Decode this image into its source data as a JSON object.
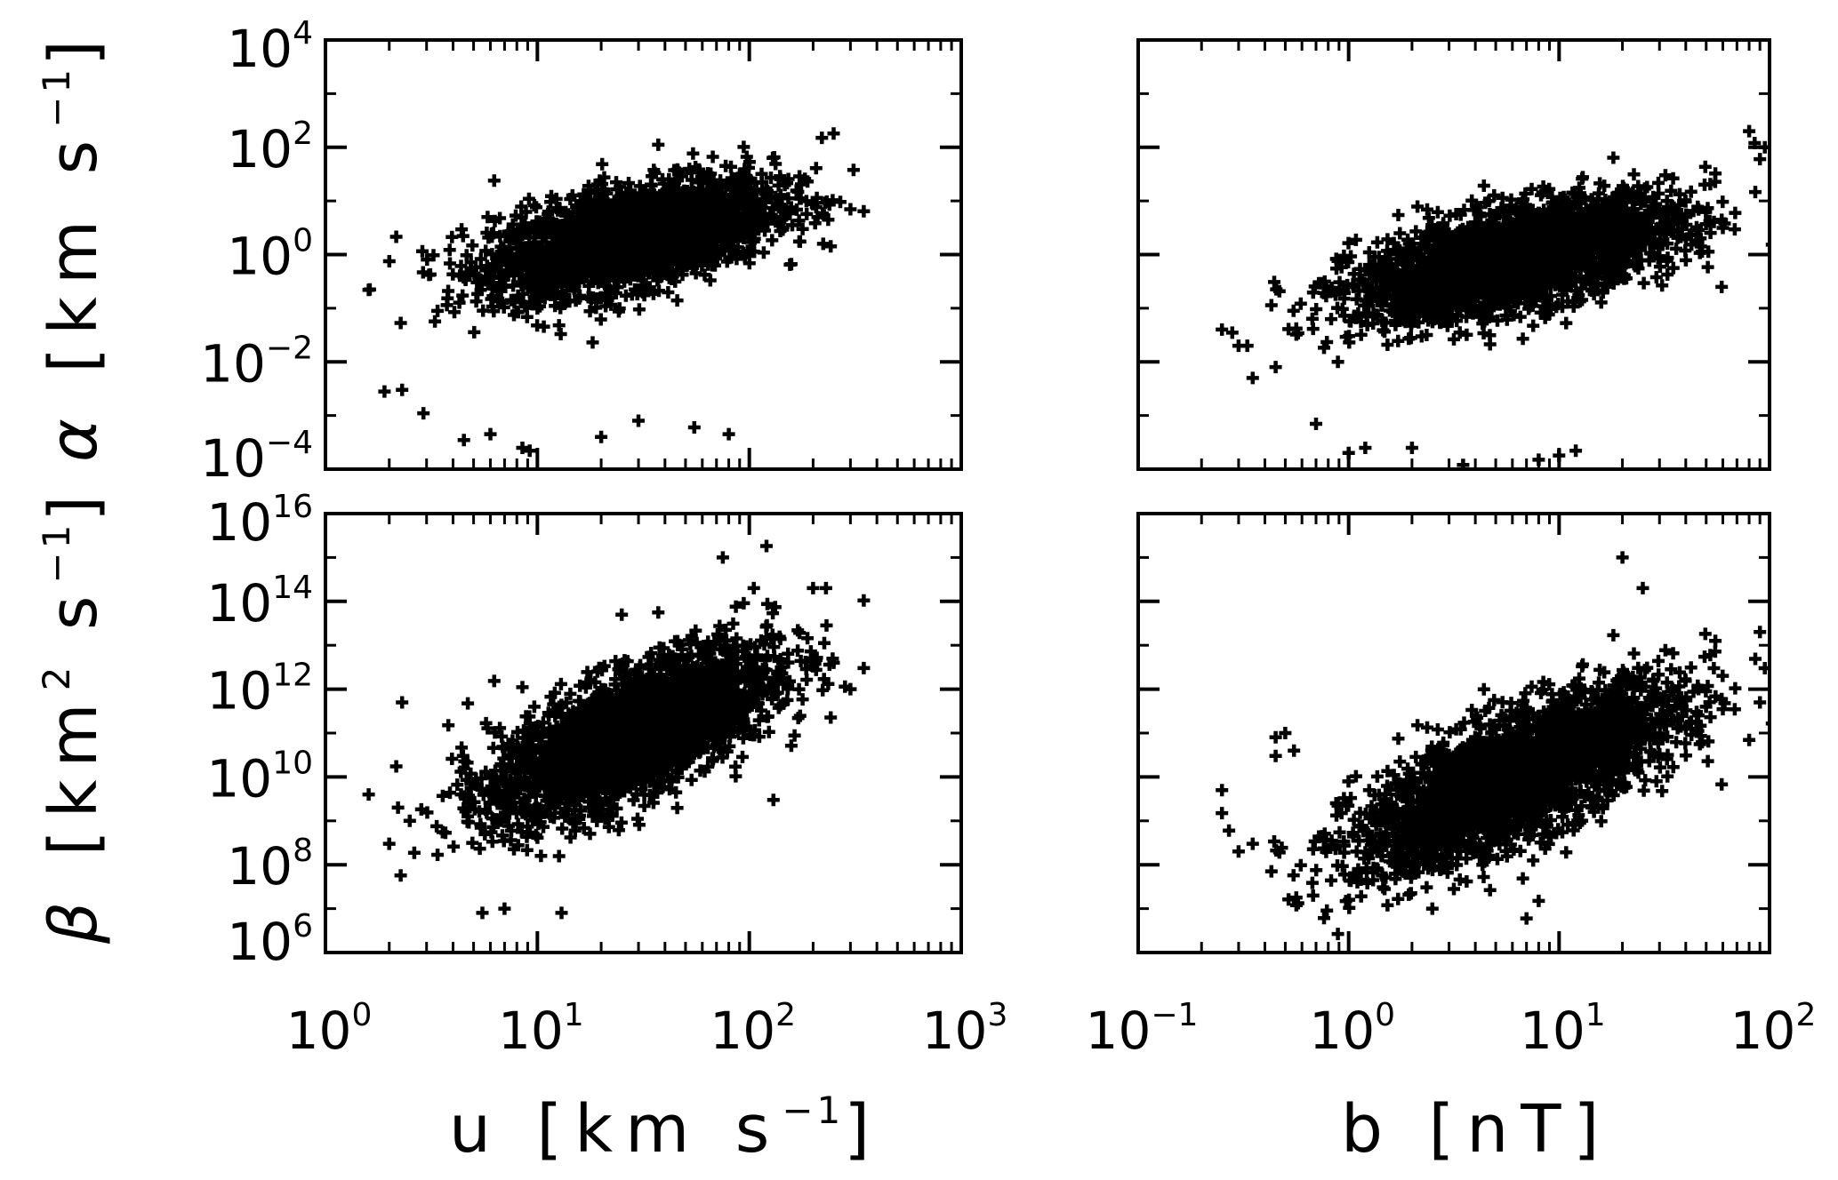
{
  "chart_data": [
    {
      "type": "scatter",
      "panel": "top-left",
      "xscale": "log",
      "yscale": "log",
      "xlim": [
        1,
        1000
      ],
      "ylim": [
        0.0001,
        10000
      ],
      "xlabel": "",
      "ylabel": "α [km s−1]",
      "xticks": [
        "",
        "",
        "",
        ""
      ],
      "yticks": [
        {
          "value": 10000,
          "base": "10",
          "exp": "4"
        },
        {
          "value": 100,
          "base": "10",
          "exp": "2"
        },
        {
          "value": 1,
          "base": "10",
          "exp": "0"
        },
        {
          "value": 0.01,
          "base": "10",
          "exp": "−2"
        },
        {
          "value": 0.0001,
          "base": "10",
          "exp": "−4"
        }
      ],
      "cloud": {
        "n": 2600,
        "mean_log_x": 1.45,
        "sd_log_x": 0.33,
        "slope": 0.85,
        "intercept": -0.9,
        "scatter_sd": 0.45
      },
      "outliers": [
        [
          1.6,
          0.22
        ],
        [
          1.9,
          0.0028
        ],
        [
          2.3,
          0.003
        ],
        [
          2.9,
          0.0011
        ],
        [
          4.5,
          0.00035
        ],
        [
          6,
          0.00045
        ],
        [
          8.5,
          0.00025
        ],
        [
          9.2,
          0.00022
        ],
        [
          13,
          4e-05
        ],
        [
          20,
          0.0004
        ],
        [
          30,
          0.0008
        ],
        [
          55,
          0.0006
        ],
        [
          80,
          0.00045
        ],
        [
          220,
          150
        ],
        [
          250,
          180
        ],
        [
          300,
          7
        ],
        [
          210,
          5
        ]
      ]
    },
    {
      "type": "scatter",
      "panel": "top-right",
      "xscale": "log",
      "yscale": "log",
      "xlim": [
        0.1,
        100
      ],
      "ylim": [
        0.0001,
        10000
      ],
      "xlabel": "",
      "ylabel": "",
      "cloud": {
        "n": 2600,
        "mean_log_x": 0.8,
        "sd_log_x": 0.38,
        "slope": 0.85,
        "intercept": -0.75,
        "scatter_sd": 0.45
      },
      "outliers": [
        [
          0.25,
          0.04
        ],
        [
          0.28,
          0.035
        ],
        [
          0.3,
          0.02
        ],
        [
          0.33,
          0.02
        ],
        [
          0.35,
          0.005
        ],
        [
          0.45,
          0.008
        ],
        [
          0.7,
          0.0007
        ],
        [
          1.0,
          0.0002
        ],
        [
          1.2,
          0.00025
        ],
        [
          2.0,
          0.00025
        ],
        [
          3.0,
          8e-05
        ],
        [
          3.5,
          0.00012
        ],
        [
          8,
          0.00015
        ],
        [
          10,
          0.00018
        ],
        [
          12,
          0.00022
        ],
        [
          80,
          200
        ],
        [
          85,
          120
        ],
        [
          95,
          100
        ],
        [
          90,
          60
        ]
      ]
    },
    {
      "type": "scatter",
      "panel": "bottom-left",
      "xscale": "log",
      "yscale": "log",
      "xlim": [
        1,
        1000
      ],
      "ylim": [
        1000000,
        10000000000000000
      ],
      "xlabel": "u [km s−1]",
      "ylabel": "β [km2 s−1]",
      "xticks": [
        {
          "value": 1,
          "base": "10",
          "exp": "0"
        },
        {
          "value": 10,
          "base": "10",
          "exp": "1"
        },
        {
          "value": 100,
          "base": "10",
          "exp": "2"
        },
        {
          "value": 1000,
          "base": "10",
          "exp": "3"
        }
      ],
      "yticks": [
        {
          "value": 10000000000000000,
          "base": "10",
          "exp": "16"
        },
        {
          "value": 100000000000000,
          "base": "10",
          "exp": "14"
        },
        {
          "value": 1000000000000,
          "base": "10",
          "exp": "12"
        },
        {
          "value": 10000000000,
          "base": "10",
          "exp": "10"
        },
        {
          "value": 100000000,
          "base": "10",
          "exp": "8"
        },
        {
          "value": 1000000,
          "base": "10",
          "exp": "6"
        }
      ],
      "cloud": {
        "n": 2600,
        "mean_log_x": 1.45,
        "sd_log_x": 0.33,
        "slope": 2.0,
        "intercept": 8.1,
        "scatter_sd": 0.7
      },
      "outliers": [
        [
          1.6,
          4000000000.0
        ],
        [
          2.0,
          300000000.0
        ],
        [
          2.2,
          2000000000.0
        ],
        [
          2.3,
          500000000000.0
        ],
        [
          2.5,
          1000000000.0
        ],
        [
          3.8,
          150000000000.0
        ],
        [
          5.5,
          8000000.0
        ],
        [
          7,
          10000000.0
        ],
        [
          13,
          8000000.0
        ],
        [
          20,
          3000000000000.0
        ],
        [
          25,
          50000000000000.0
        ],
        [
          75,
          1000000000000000.0
        ],
        [
          105,
          200000000000000.0
        ],
        [
          200,
          200000000000000.0
        ],
        [
          230,
          200000000000000.0
        ],
        [
          250,
          4000000000000.0
        ],
        [
          300,
          1000000000000.0
        ],
        [
          130,
          3000000000.0
        ]
      ]
    },
    {
      "type": "scatter",
      "panel": "bottom-right",
      "xscale": "log",
      "yscale": "log",
      "xlim": [
        0.1,
        100
      ],
      "ylim": [
        1000000,
        10000000000000000
      ],
      "xlabel": "b [nT]",
      "ylabel": "",
      "xticks": [
        {
          "value": 0.1,
          "base": "10",
          "exp": "−1"
        },
        {
          "value": 1,
          "base": "10",
          "exp": "0"
        },
        {
          "value": 10,
          "base": "10",
          "exp": "1"
        },
        {
          "value": 100,
          "base": "10",
          "exp": "2"
        }
      ],
      "cloud": {
        "n": 2600,
        "mean_log_x": 0.8,
        "sd_log_x": 0.38,
        "slope": 2.0,
        "intercept": 8.4,
        "scatter_sd": 0.7
      },
      "outliers": [
        [
          0.25,
          5000000000.0
        ],
        [
          0.25,
          1500000000.0
        ],
        [
          0.27,
          600000000.0
        ],
        [
          0.3,
          200000000.0
        ],
        [
          0.35,
          300000000.0
        ],
        [
          0.45,
          30000000000.0
        ],
        [
          0.45,
          80000000000.0
        ],
        [
          0.5,
          100000000000.0
        ],
        [
          0.55,
          40000000000.0
        ],
        [
          1.1,
          40000000.0
        ],
        [
          2.5,
          10000000.0
        ],
        [
          7,
          6000000.0
        ],
        [
          8,
          15000000.0
        ],
        [
          20,
          1000000000000000.0
        ],
        [
          25,
          200000000000000.0
        ],
        [
          90,
          20000000000000.0
        ],
        [
          95,
          3000000000000.0
        ],
        [
          90,
          500000000000.0
        ],
        [
          80,
          70000000000.0
        ]
      ]
    }
  ],
  "labels": {
    "alpha_ylabel": {
      "symbol": "α",
      "text": " [km s",
      "sup": "−1",
      "close": "]"
    },
    "beta_ylabel": {
      "symbol": "β",
      "text": " [km",
      "sup": "2",
      "mid": " s",
      "sup2": "−1",
      "close": "]"
    },
    "u_xlabel": {
      "text": "u [km s",
      "sup": "−1",
      "close": "]"
    },
    "b_xlabel": {
      "text": "b [nT]"
    }
  },
  "colors": {
    "marker": "#000000",
    "background": "#ffffff",
    "axes": "#000000"
  }
}
